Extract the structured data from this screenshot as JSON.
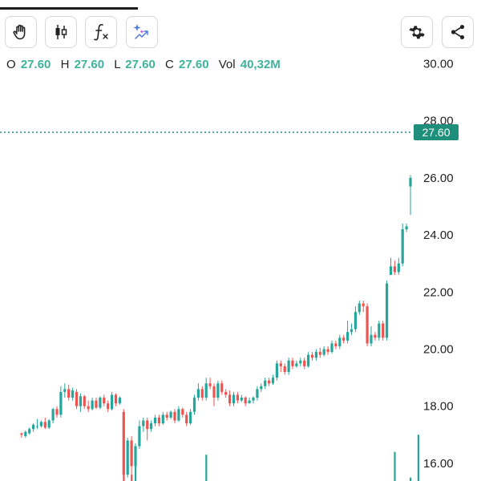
{
  "toolbar": {
    "items": [
      {
        "icon": "hand-icon"
      },
      {
        "icon": "candlestick-icon"
      },
      {
        "icon": "function-icon"
      },
      {
        "icon": "ai-sparkle-icon"
      },
      {
        "icon": "gear-icon"
      },
      {
        "icon": "share-icon"
      }
    ]
  },
  "ohlc": {
    "o_label": "O",
    "o": "27.60",
    "h_label": "H",
    "h": "27.60",
    "l_label": "L",
    "l": "27.60",
    "c_label": "C",
    "c": "27.60",
    "vol_label": "Vol",
    "vol": "40,32M"
  },
  "price_tag": "27.60",
  "colors": {
    "up": "#26a69a",
    "down": "#ef5350",
    "accent": "#1e8f7a",
    "ohlc_value": "#3eb39b"
  },
  "chart_data": {
    "type": "candlestick",
    "y_axis_ticks": [
      "30.00",
      "28.00",
      "26.00",
      "24.00",
      "22.00",
      "20.00",
      "18.00",
      "16.00"
    ],
    "ylim": [
      15.4,
      30.5
    ],
    "last_price": 27.6,
    "candles": [
      [
        17.05,
        17.0,
        17.08,
        16.9
      ],
      [
        16.95,
        17.1,
        17.15,
        16.9
      ],
      [
        17.05,
        17.2,
        17.25,
        17.0
      ],
      [
        17.2,
        17.35,
        17.4,
        17.1
      ],
      [
        17.3,
        17.3,
        17.55,
        17.2
      ],
      [
        17.3,
        17.45,
        17.5,
        17.25
      ],
      [
        17.45,
        17.25,
        17.6,
        17.2
      ],
      [
        17.25,
        17.5,
        17.55,
        17.2
      ],
      [
        17.5,
        17.9,
        17.95,
        17.4
      ],
      [
        17.9,
        17.7,
        18.0,
        17.6
      ],
      [
        17.7,
        18.5,
        18.7,
        17.6
      ],
      [
        18.5,
        18.6,
        18.8,
        18.3
      ],
      [
        18.6,
        18.3,
        18.75,
        18.2
      ],
      [
        18.3,
        18.55,
        18.65,
        18.2
      ],
      [
        18.5,
        18.0,
        18.6,
        17.9
      ],
      [
        18.0,
        18.35,
        18.45,
        17.8
      ],
      [
        18.35,
        18.0,
        18.4,
        17.9
      ],
      [
        18.0,
        17.9,
        18.2,
        17.8
      ],
      [
        17.9,
        18.2,
        18.3,
        17.85
      ],
      [
        18.2,
        17.95,
        18.3,
        17.9
      ],
      [
        17.95,
        18.3,
        18.35,
        17.9
      ],
      [
        18.3,
        18.1,
        18.4,
        18.0
      ],
      [
        18.1,
        17.9,
        18.2,
        17.8
      ],
      [
        17.9,
        18.4,
        18.5,
        17.85
      ],
      [
        18.4,
        18.1,
        18.45,
        18.0
      ],
      [
        18.1,
        18.3,
        18.35,
        18.05
      ],
      [
        17.8,
        15.6,
        17.9,
        15.4
      ],
      [
        15.6,
        16.8,
        16.9,
        15.5
      ],
      [
        16.8,
        15.9,
        16.95,
        15.6
      ],
      [
        15.9,
        16.6,
        16.7,
        15.8
      ],
      [
        16.6,
        17.3,
        17.5,
        16.5
      ],
      [
        17.3,
        17.5,
        17.6,
        17.1
      ],
      [
        17.5,
        17.2,
        17.6,
        16.8
      ],
      [
        17.2,
        17.4,
        17.5,
        17.1
      ],
      [
        17.4,
        17.6,
        17.7,
        17.3
      ],
      [
        17.6,
        17.4,
        17.7,
        17.3
      ],
      [
        17.4,
        17.7,
        17.8,
        17.35
      ],
      [
        17.7,
        17.6,
        17.8,
        17.5
      ],
      [
        17.6,
        17.8,
        17.85,
        17.55
      ],
      [
        17.8,
        17.5,
        17.9,
        17.4
      ],
      [
        17.5,
        17.9,
        18.0,
        17.45
      ],
      [
        17.9,
        17.7,
        17.95,
        17.6
      ],
      [
        17.7,
        17.4,
        17.8,
        17.3
      ],
      [
        17.4,
        17.8,
        17.9,
        17.35
      ],
      [
        17.8,
        18.3,
        18.4,
        17.7
      ],
      [
        18.3,
        18.6,
        18.8,
        18.2
      ],
      [
        18.6,
        18.3,
        18.7,
        18.2
      ],
      [
        18.3,
        18.8,
        19.0,
        18.2
      ],
      [
        18.8,
        18.7,
        19.0,
        18.6
      ],
      [
        18.7,
        18.3,
        18.8,
        18.0
      ],
      [
        18.3,
        18.8,
        18.9,
        18.2
      ],
      [
        18.8,
        18.5,
        18.9,
        18.4
      ],
      [
        18.5,
        18.4,
        18.6,
        18.3
      ],
      [
        18.4,
        18.1,
        18.55,
        18.0
      ],
      [
        18.1,
        18.4,
        18.5,
        18.0
      ],
      [
        18.4,
        18.2,
        18.5,
        18.1
      ],
      [
        18.2,
        18.3,
        18.4,
        18.15
      ],
      [
        18.3,
        18.1,
        18.35,
        18.0
      ],
      [
        18.1,
        18.2,
        18.3,
        18.1
      ],
      [
        18.2,
        18.3,
        18.35,
        18.1
      ],
      [
        18.3,
        18.6,
        18.7,
        18.2
      ],
      [
        18.6,
        18.7,
        18.8,
        18.5
      ],
      [
        18.7,
        18.9,
        19.0,
        18.6
      ],
      [
        18.9,
        18.8,
        19.0,
        18.7
      ],
      [
        18.8,
        19.0,
        19.1,
        18.75
      ],
      [
        19.0,
        19.5,
        19.6,
        18.9
      ],
      [
        19.5,
        19.4,
        19.6,
        19.2
      ],
      [
        19.4,
        19.2,
        19.5,
        19.1
      ],
      [
        19.2,
        19.6,
        19.7,
        19.1
      ],
      [
        19.6,
        19.4,
        19.7,
        19.3
      ],
      [
        19.4,
        19.5,
        19.6,
        19.35
      ],
      [
        19.5,
        19.6,
        19.7,
        19.4
      ],
      [
        19.6,
        19.4,
        19.7,
        19.3
      ],
      [
        19.4,
        19.8,
        19.9,
        19.35
      ],
      [
        19.8,
        19.7,
        19.9,
        19.6
      ],
      [
        19.7,
        19.9,
        20.0,
        19.6
      ],
      [
        19.9,
        19.8,
        20.05,
        19.7
      ],
      [
        19.8,
        20.0,
        20.1,
        19.75
      ],
      [
        20.0,
        19.9,
        20.1,
        19.8
      ],
      [
        19.9,
        20.2,
        20.3,
        19.85
      ],
      [
        20.2,
        20.1,
        20.3,
        20.0
      ],
      [
        20.1,
        20.4,
        20.5,
        20.0
      ],
      [
        20.4,
        20.3,
        20.5,
        20.2
      ],
      [
        20.3,
        20.6,
        21.0,
        20.2
      ],
      [
        20.6,
        20.7,
        20.9,
        20.5
      ],
      [
        20.7,
        21.3,
        21.5,
        20.6
      ],
      [
        21.3,
        21.6,
        21.7,
        21.2
      ],
      [
        21.6,
        21.5,
        21.7,
        21.3
      ],
      [
        21.5,
        20.2,
        21.6,
        20.1
      ],
      [
        20.2,
        20.5,
        20.8,
        20.1
      ],
      [
        20.5,
        20.4,
        20.6,
        20.3
      ],
      [
        20.4,
        20.9,
        21.0,
        20.3
      ],
      [
        20.9,
        20.4,
        21.0,
        20.3
      ],
      [
        20.4,
        22.3,
        22.4,
        20.3
      ],
      [
        22.6,
        22.9,
        23.2,
        22.6
      ],
      [
        22.9,
        22.7,
        23.1,
        22.6
      ],
      [
        22.7,
        23.0,
        23.2,
        22.6
      ],
      [
        23.0,
        24.2,
        24.4,
        22.9
      ],
      [
        24.2,
        24.3,
        24.4,
        24.1
      ],
      [
        25.7,
        26.0,
        26.1,
        24.7
      ]
    ],
    "volumes": [
      {
        "index": 26,
        "value": 16.9,
        "direction": "down"
      },
      {
        "index": 28,
        "value": 15.6,
        "direction": "down"
      },
      {
        "index": 29,
        "value": 16.3,
        "direction": "up"
      },
      {
        "index": 47,
        "value": 16.3,
        "direction": "up"
      },
      {
        "index": 95,
        "value": 16.4,
        "direction": "up"
      },
      {
        "index": 99,
        "value": 15.5,
        "direction": "up"
      },
      {
        "index": 101,
        "value": 17.0,
        "direction": "up"
      }
    ]
  }
}
